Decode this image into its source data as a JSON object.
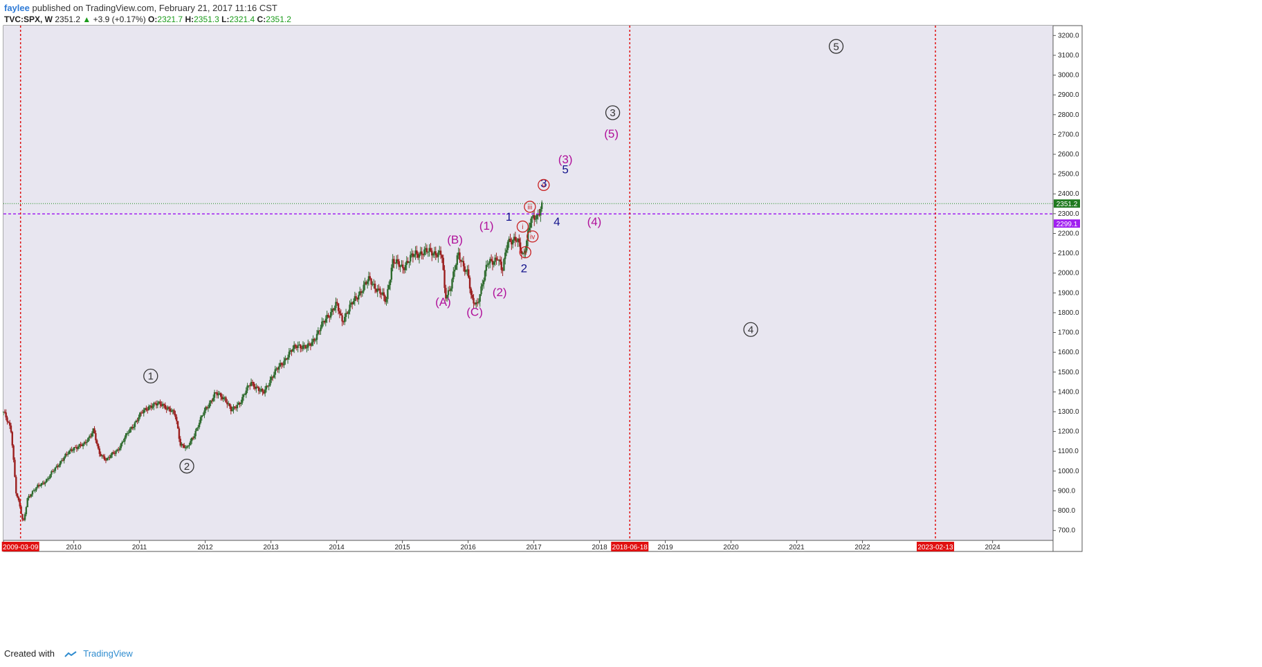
{
  "header": {
    "author": "faylee",
    "published": "published on TradingView.com, February 21, 2017 11:16 CST"
  },
  "ticker": {
    "symbol": "TVC:SPX, W",
    "price": "2351.2",
    "arrow": "▲",
    "change": "+3.9 (+0.17%)",
    "o_label": "O:",
    "o": "2321.7",
    "h_label": "H:",
    "h": "2351.3",
    "l_label": "L:",
    "l": "2321.4",
    "c_label": "C:",
    "c": "2351.2"
  },
  "footer": {
    "created_with": "Created with",
    "brand": "TradingView"
  },
  "colors": {
    "plot_bg": "#e8e6f0",
    "up_candle": "#2e6b2e",
    "down_candle": "#9b1e1e",
    "vline": "#e01010",
    "purple_line": "#a020f0",
    "price_line": "#1a8a1a",
    "wave_circle": "#333333",
    "wave_magenta": "#b0109a",
    "wave_navy": "#14148c",
    "wave_red": "#c81e1e"
  },
  "chart_data": {
    "type": "candlestick",
    "title": "TVC:SPX, W",
    "ylim": [
      650,
      3250
    ],
    "xlim": [
      2008.93,
      2024.9
    ],
    "y_ticks": [
      "700.0",
      "800.0",
      "900.0",
      "1000.0",
      "1100.0",
      "1200.0",
      "1300.0",
      "1400.0",
      "1500.0",
      "1600.0",
      "1700.0",
      "1800.0",
      "1900.0",
      "2000.0",
      "2100.0",
      "2200.0",
      "2300.0",
      "2400.0",
      "2500.0",
      "2600.0",
      "2700.0",
      "2800.0",
      "2900.0",
      "3000.0",
      "3100.0",
      "3200.0"
    ],
    "x_ticks": [
      "2010",
      "2011",
      "2012",
      "2013",
      "2014",
      "2015",
      "2016",
      "2017",
      "2018",
      "2019",
      "2020",
      "2021",
      "2022",
      "2024"
    ],
    "price_path": [
      [
        2008.93,
        1300
      ],
      [
        2009.05,
        1200
      ],
      [
        2009.12,
        900
      ],
      [
        2009.18,
        820
      ],
      [
        2009.23,
        730
      ],
      [
        2009.3,
        870
      ],
      [
        2009.45,
        920
      ],
      [
        2009.6,
        960
      ],
      [
        2009.8,
        1050
      ],
      [
        2010.0,
        1120
      ],
      [
        2010.15,
        1130
      ],
      [
        2010.3,
        1210
      ],
      [
        2010.38,
        1090
      ],
      [
        2010.5,
        1060
      ],
      [
        2010.65,
        1100
      ],
      [
        2010.8,
        1180
      ],
      [
        2011.0,
        1280
      ],
      [
        2011.15,
        1330
      ],
      [
        2011.35,
        1340
      ],
      [
        2011.55,
        1280
      ],
      [
        2011.62,
        1140
      ],
      [
        2011.72,
        1110
      ],
      [
        2011.85,
        1200
      ],
      [
        2012.0,
        1310
      ],
      [
        2012.15,
        1390
      ],
      [
        2012.3,
        1370
      ],
      [
        2012.4,
        1300
      ],
      [
        2012.55,
        1360
      ],
      [
        2012.7,
        1450
      ],
      [
        2012.88,
        1390
      ],
      [
        2013.0,
        1470
      ],
      [
        2013.2,
        1560
      ],
      [
        2013.4,
        1640
      ],
      [
        2013.55,
        1620
      ],
      [
        2013.7,
        1690
      ],
      [
        2013.85,
        1780
      ],
      [
        2014.0,
        1840
      ],
      [
        2014.08,
        1760
      ],
      [
        2014.3,
        1880
      ],
      [
        2014.5,
        1970
      ],
      [
        2014.75,
        1860
      ],
      [
        2014.85,
        2060
      ],
      [
        2015.0,
        2030
      ],
      [
        2015.2,
        2100
      ],
      [
        2015.45,
        2110
      ],
      [
        2015.6,
        2090
      ],
      [
        2015.65,
        1880
      ],
      [
        2015.72,
        1920
      ],
      [
        2015.85,
        2090
      ],
      [
        2016.0,
        2000
      ],
      [
        2016.05,
        1860
      ],
      [
        2016.13,
        1840
      ],
      [
        2016.3,
        2050
      ],
      [
        2016.45,
        2080
      ],
      [
        2016.52,
        2000
      ],
      [
        2016.6,
        2170
      ],
      [
        2016.75,
        2160
      ],
      [
        2016.84,
        2090
      ],
      [
        2016.88,
        2150
      ],
      [
        2016.95,
        2260
      ],
      [
        2017.05,
        2290
      ],
      [
        2017.11,
        2340
      ],
      [
        2017.14,
        2351
      ]
    ],
    "last_price": 2351.2,
    "horizontal_line": 2299.1,
    "vertical_markers": [
      {
        "x": 2009.19,
        "label": "2009-03-09"
      },
      {
        "x": 2018.46,
        "label": "2018-06-18"
      },
      {
        "x": 2023.11,
        "label": "2023-02-13"
      }
    ],
    "annotations": [
      {
        "text": "1",
        "style": "circle",
        "x": 2011.17,
        "y": 1480
      },
      {
        "text": "2",
        "style": "circle",
        "x": 2011.72,
        "y": 1025
      },
      {
        "text": "3",
        "style": "circle",
        "x": 2018.2,
        "y": 2810
      },
      {
        "text": "4",
        "style": "circle",
        "x": 2020.3,
        "y": 1715
      },
      {
        "text": "5",
        "style": "circle",
        "x": 2021.6,
        "y": 3145
      },
      {
        "text": "(A)",
        "style": "magenta",
        "x": 2015.62,
        "y": 1855
      },
      {
        "text": "(B)",
        "style": "magenta",
        "x": 2015.8,
        "y": 2170
      },
      {
        "text": "(C)",
        "style": "magenta",
        "x": 2016.1,
        "y": 1805
      },
      {
        "text": "(1)",
        "style": "magenta",
        "x": 2016.28,
        "y": 2240
      },
      {
        "text": "(2)",
        "style": "magenta",
        "x": 2016.48,
        "y": 1905
      },
      {
        "text": "(3)",
        "style": "magenta",
        "x": 2017.48,
        "y": 2575
      },
      {
        "text": "(4)",
        "style": "magenta",
        "x": 2017.92,
        "y": 2260
      },
      {
        "text": "(5)",
        "style": "magenta",
        "x": 2018.18,
        "y": 2705
      },
      {
        "text": "1",
        "style": "navy",
        "x": 2016.62,
        "y": 2285
      },
      {
        "text": "2",
        "style": "navy",
        "x": 2016.85,
        "y": 2025
      },
      {
        "text": "3",
        "style": "navy",
        "x": 2017.15,
        "y": 2455
      },
      {
        "text": "4",
        "style": "navy",
        "x": 2017.35,
        "y": 2260
      },
      {
        "text": "5",
        "style": "navy",
        "x": 2017.48,
        "y": 2525
      },
      {
        "text": "i",
        "style": "redcircle",
        "x": 2016.83,
        "y": 2235
      },
      {
        "text": "ii",
        "style": "redcircle",
        "x": 2016.87,
        "y": 2105
      },
      {
        "text": "iii",
        "style": "redcircle",
        "x": 2016.94,
        "y": 2335
      },
      {
        "text": "iv",
        "style": "redcircle",
        "x": 2016.98,
        "y": 2185
      },
      {
        "text": "v",
        "style": "redcircle",
        "x": 2017.15,
        "y": 2445
      }
    ]
  }
}
